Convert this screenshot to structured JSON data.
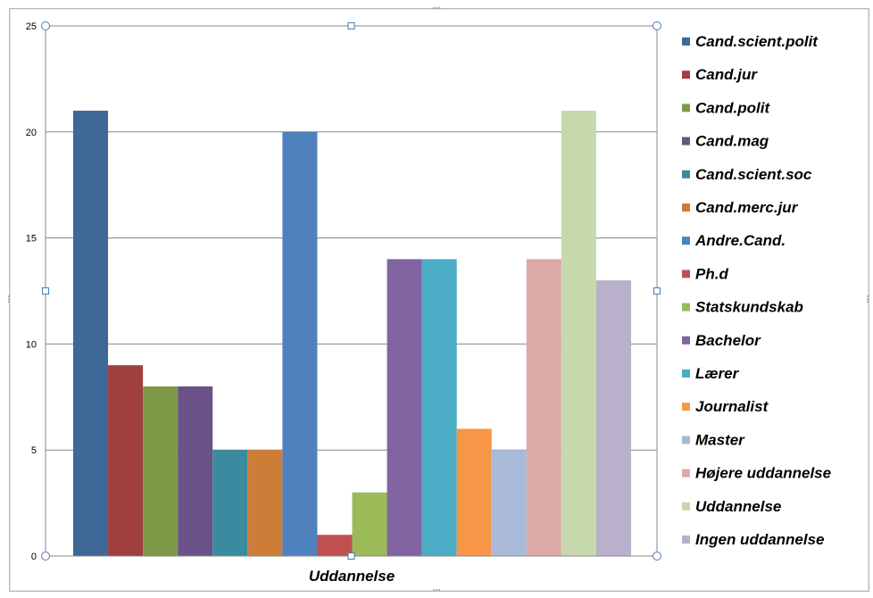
{
  "chart_data": {
    "type": "bar",
    "categories": [
      "Uddannelse"
    ],
    "xlabel": "Uddannelse",
    "ylabel": "",
    "ylim": [
      0,
      25
    ],
    "yticks": [
      0,
      5,
      10,
      15,
      20,
      25
    ],
    "grid": true,
    "legend_position": "right",
    "series": [
      {
        "name": "Cand.scient.polit",
        "values": [
          21
        ],
        "color": "#3F6797"
      },
      {
        "name": "Cand.jur",
        "values": [
          9
        ],
        "color": "#9F3F3E"
      },
      {
        "name": "Cand.polit",
        "values": [
          8
        ],
        "color": "#7F9A47"
      },
      {
        "name": "Cand.mag",
        "values": [
          8
        ],
        "color": "#6A5187"
      },
      {
        "name": "Cand.scient.soc",
        "values": [
          5
        ],
        "color": "#3A8BA0"
      },
      {
        "name": "Cand.merc.jur",
        "values": [
          5
        ],
        "color": "#CE7D39"
      },
      {
        "name": "Andre.Cand.",
        "values": [
          20
        ],
        "color": "#4F81BD"
      },
      {
        "name": "Ph.d",
        "values": [
          1
        ],
        "color": "#C0504D"
      },
      {
        "name": "Statskundskab",
        "values": [
          3
        ],
        "color": "#9BBB59"
      },
      {
        "name": "Bachelor",
        "values": [
          14
        ],
        "color": "#8064A2"
      },
      {
        "name": "Lærer",
        "values": [
          14
        ],
        "color": "#4BACC6"
      },
      {
        "name": "Journalist",
        "values": [
          6
        ],
        "color": "#F79646"
      },
      {
        "name": "Master",
        "values": [
          5
        ],
        "color": "#A9BAD9"
      },
      {
        "name": "Højere uddannelse",
        "values": [
          14
        ],
        "color": "#DBA9A8"
      },
      {
        "name": "Uddannelse",
        "values": [
          21
        ],
        "color": "#C7D8AD"
      },
      {
        "name": "Ingen uddannelse",
        "values": [
          13
        ],
        "color": "#B9B0CC"
      }
    ]
  }
}
